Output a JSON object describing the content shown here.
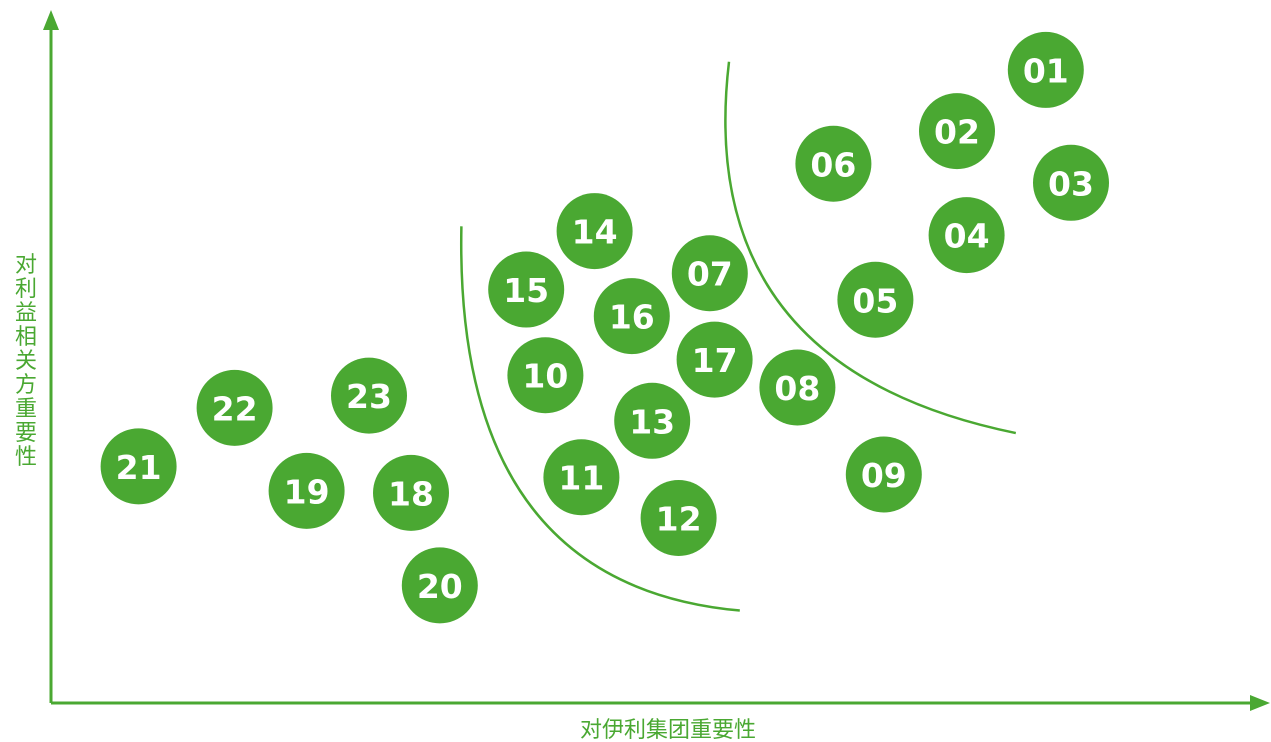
{
  "chart_data": {
    "type": "scatter",
    "title": "",
    "xlabel": "对伊利集团重要性",
    "ylabel": "对利益相关方重要性",
    "xlim": [
      0,
      100
    ],
    "ylim": [
      0,
      100
    ],
    "grid": false,
    "legend": "none",
    "color": "#4aa832",
    "label_color": "#ffffff",
    "points": [
      {
        "label": "01",
        "x": 82.9,
        "y": 93.1
      },
      {
        "label": "02",
        "x": 75.5,
        "y": 84.1
      },
      {
        "label": "03",
        "x": 85.0,
        "y": 76.5
      },
      {
        "label": "04",
        "x": 76.3,
        "y": 68.8
      },
      {
        "label": "05",
        "x": 68.7,
        "y": 59.3
      },
      {
        "label": "06",
        "x": 65.2,
        "y": 79.3
      },
      {
        "label": "07",
        "x": 54.9,
        "y": 63.2
      },
      {
        "label": "08",
        "x": 62.2,
        "y": 46.4
      },
      {
        "label": "09",
        "x": 69.4,
        "y": 33.6
      },
      {
        "label": "10",
        "x": 41.2,
        "y": 48.2
      },
      {
        "label": "11",
        "x": 44.2,
        "y": 33.2
      },
      {
        "label": "12",
        "x": 52.3,
        "y": 27.2
      },
      {
        "label": "13",
        "x": 50.1,
        "y": 41.5
      },
      {
        "label": "14",
        "x": 45.3,
        "y": 69.4
      },
      {
        "label": "15",
        "x": 39.6,
        "y": 60.8
      },
      {
        "label": "16",
        "x": 48.4,
        "y": 56.9
      },
      {
        "label": "17",
        "x": 55.3,
        "y": 50.5
      },
      {
        "label": "18",
        "x": 30.0,
        "y": 30.9
      },
      {
        "label": "19",
        "x": 21.3,
        "y": 31.2
      },
      {
        "label": "20",
        "x": 32.4,
        "y": 17.3
      },
      {
        "label": "21",
        "x": 7.3,
        "y": 34.8
      },
      {
        "label": "22",
        "x": 15.3,
        "y": 43.4
      },
      {
        "label": "23",
        "x": 26.5,
        "y": 45.2
      }
    ],
    "boundaries": [
      {
        "start": [
          34.2,
          70.1
        ],
        "control": [
          33.6,
          17.4
        ],
        "end": [
          57.4,
          13.6
        ]
      },
      {
        "start": [
          56.5,
          94.3
        ],
        "control": [
          53.5,
          49.4
        ],
        "end": [
          80.4,
          39.7
        ]
      }
    ]
  }
}
